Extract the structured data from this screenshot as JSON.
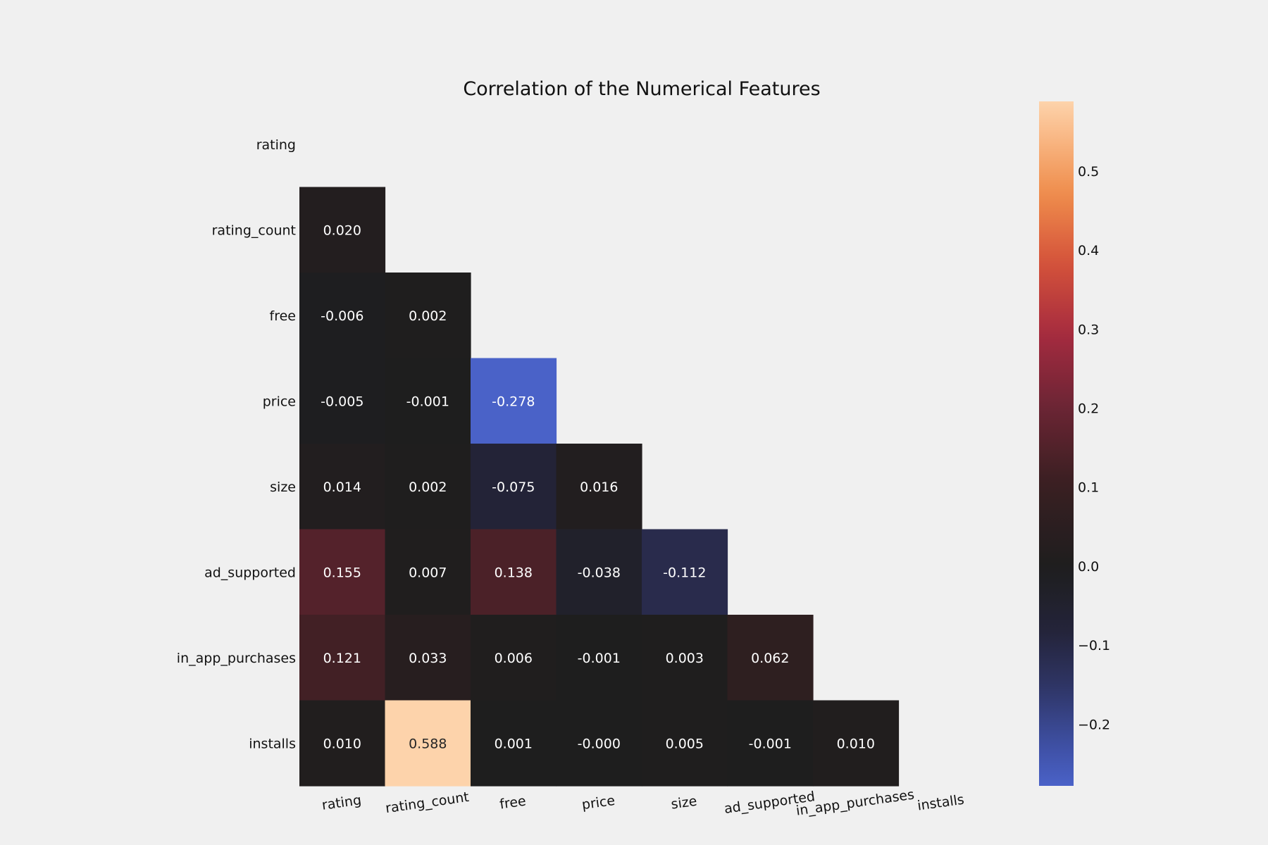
{
  "chart_data": {
    "type": "heatmap",
    "title": "Correlation of the Numerical Features",
    "xlabel": "",
    "ylabel": "",
    "features": [
      "rating",
      "rating_count",
      "free",
      "price",
      "size",
      "ad_supported",
      "in_app_purchases",
      "installs"
    ],
    "mask": "upper-triangle-including-diagonal",
    "cells": [
      {
        "row": "rating_count",
        "col": "rating",
        "value": 0.02,
        "label": "0.020"
      },
      {
        "row": "free",
        "col": "rating",
        "value": -0.006,
        "label": "-0.006"
      },
      {
        "row": "free",
        "col": "rating_count",
        "value": 0.002,
        "label": "0.002"
      },
      {
        "row": "price",
        "col": "rating",
        "value": -0.005,
        "label": "-0.005"
      },
      {
        "row": "price",
        "col": "rating_count",
        "value": -0.001,
        "label": "-0.001"
      },
      {
        "row": "price",
        "col": "free",
        "value": -0.278,
        "label": "-0.278"
      },
      {
        "row": "size",
        "col": "rating",
        "value": 0.014,
        "label": "0.014"
      },
      {
        "row": "size",
        "col": "rating_count",
        "value": 0.002,
        "label": "0.002"
      },
      {
        "row": "size",
        "col": "free",
        "value": -0.075,
        "label": "-0.075"
      },
      {
        "row": "size",
        "col": "price",
        "value": 0.016,
        "label": "0.016"
      },
      {
        "row": "ad_supported",
        "col": "rating",
        "value": 0.155,
        "label": "0.155"
      },
      {
        "row": "ad_supported",
        "col": "rating_count",
        "value": 0.007,
        "label": "0.007"
      },
      {
        "row": "ad_supported",
        "col": "free",
        "value": 0.138,
        "label": "0.138"
      },
      {
        "row": "ad_supported",
        "col": "price",
        "value": -0.038,
        "label": "-0.038"
      },
      {
        "row": "ad_supported",
        "col": "size",
        "value": -0.112,
        "label": "-0.112"
      },
      {
        "row": "in_app_purchases",
        "col": "rating",
        "value": 0.121,
        "label": "0.121"
      },
      {
        "row": "in_app_purchases",
        "col": "rating_count",
        "value": 0.033,
        "label": "0.033"
      },
      {
        "row": "in_app_purchases",
        "col": "free",
        "value": 0.006,
        "label": "0.006"
      },
      {
        "row": "in_app_purchases",
        "col": "price",
        "value": -0.001,
        "label": "-0.001"
      },
      {
        "row": "in_app_purchases",
        "col": "size",
        "value": 0.003,
        "label": "0.003"
      },
      {
        "row": "in_app_purchases",
        "col": "ad_supported",
        "value": 0.062,
        "label": "0.062"
      },
      {
        "row": "installs",
        "col": "rating",
        "value": 0.01,
        "label": "0.010"
      },
      {
        "row": "installs",
        "col": "rating_count",
        "value": 0.588,
        "label": "0.588"
      },
      {
        "row": "installs",
        "col": "free",
        "value": 0.001,
        "label": "0.001"
      },
      {
        "row": "installs",
        "col": "price",
        "value": -0.0,
        "label": "-0.000"
      },
      {
        "row": "installs",
        "col": "size",
        "value": 0.005,
        "label": "0.005"
      },
      {
        "row": "installs",
        "col": "ad_supported",
        "value": -0.001,
        "label": "-0.001"
      },
      {
        "row": "installs",
        "col": "in_app_purchases",
        "value": 0.01,
        "label": "0.010"
      }
    ],
    "colorbar": {
      "range": [
        -0.278,
        0.588
      ],
      "center": 0,
      "ticks": [
        -0.2,
        -0.1,
        0.0,
        0.1,
        0.2,
        0.3,
        0.4,
        0.5
      ],
      "tick_labels": [
        "−0.2",
        "−0.1",
        "0.0",
        "0.1",
        "0.2",
        "0.3",
        "0.4",
        "0.5"
      ]
    },
    "colors": {
      "negative_end": "#4a62c8",
      "center": "#1e1e1e",
      "positive_end": "#fdd3ab",
      "background": "#f0f0f0"
    },
    "grid": false
  }
}
